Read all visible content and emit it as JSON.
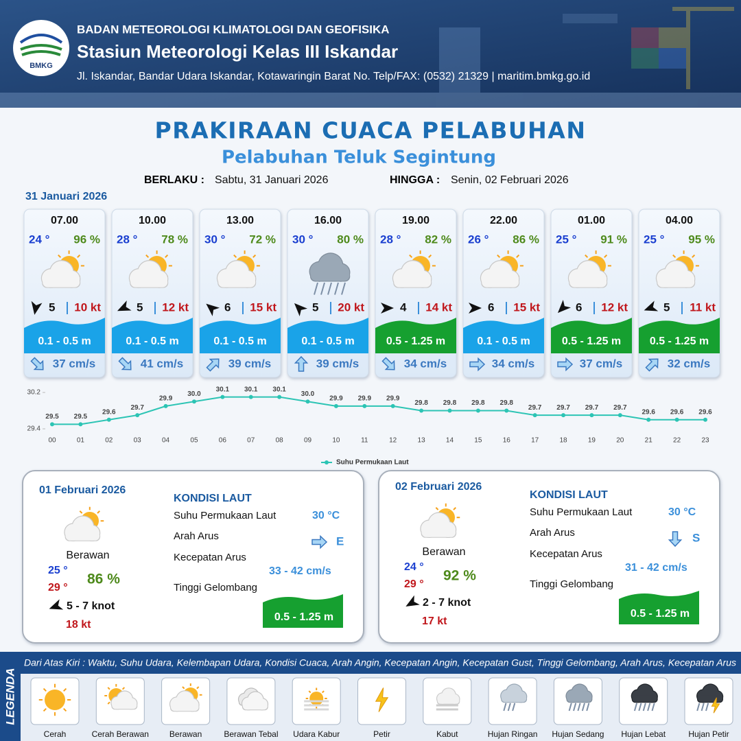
{
  "header": {
    "agency": "BADAN METEOROLOGI KLIMATOLOGI DAN GEOFISIKA",
    "station": "Stasiun Meteorologi Kelas III Iskandar",
    "address": "Jl. Iskandar, Bandar Udara Iskandar, Kotawaringin Barat No. Telp/FAX: (0532) 21329 | maritim.bmkg.go.id",
    "logo_text": "BMKG"
  },
  "title": "PRAKIRAAN CUACA PELABUHAN",
  "subtitle": "Pelabuhan Teluk Segintung",
  "validity": {
    "from_label": "BERLAKU :",
    "from": "Sabtu, 31 Januari 2026",
    "to_label": "HINGGA :",
    "to": "Senin, 02 Februari 2026"
  },
  "day1": {
    "date": "31 Januari 2026",
    "forecasts": [
      {
        "time": "07.00",
        "temp": "24 °",
        "humidity": "96 %",
        "wind": "5",
        "gust": "10 kt",
        "wave": "0.1 - 0.5 m",
        "wave_color": "#1aa3e8",
        "current": "37 cm/s"
      },
      {
        "time": "10.00",
        "temp": "28 °",
        "humidity": "78 %",
        "wind": "5",
        "gust": "12 kt",
        "wave": "0.1 - 0.5 m",
        "wave_color": "#1aa3e8",
        "current": "41 cm/s"
      },
      {
        "time": "13.00",
        "temp": "30 °",
        "humidity": "72 %",
        "wind": "6",
        "gust": "15 kt",
        "wave": "0.1 - 0.5 m",
        "wave_color": "#1aa3e8",
        "current": "39 cm/s"
      },
      {
        "time": "16.00",
        "temp": "30 °",
        "humidity": "80 %",
        "wind": "5",
        "gust": "20 kt",
        "wave": "0.1 - 0.5 m",
        "wave_color": "#1aa3e8",
        "current": "39 cm/s"
      },
      {
        "time": "19.00",
        "temp": "28 °",
        "humidity": "82 %",
        "wind": "4",
        "gust": "14 kt",
        "wave": "0.5 - 1.25 m",
        "wave_color": "#16a030",
        "current": "34 cm/s"
      },
      {
        "time": "22.00",
        "temp": "26 °",
        "humidity": "86 %",
        "wind": "6",
        "gust": "15 kt",
        "wave": "0.1 - 0.5 m",
        "wave_color": "#1aa3e8",
        "current": "34 cm/s"
      },
      {
        "time": "01.00",
        "temp": "25 °",
        "humidity": "91 %",
        "wind": "6",
        "gust": "12 kt",
        "wave": "0.5 - 1.25 m",
        "wave_color": "#16a030",
        "current": "37 cm/s"
      },
      {
        "time": "04.00",
        "temp": "25 °",
        "humidity": "95 %",
        "wind": "5",
        "gust": "11 kt",
        "wave": "0.5 - 1.25 m",
        "wave_color": "#16a030",
        "current": "32 cm/s"
      }
    ]
  },
  "chart_data": {
    "type": "line",
    "categories": [
      "00",
      "01",
      "02",
      "03",
      "04",
      "05",
      "06",
      "07",
      "08",
      "09",
      "10",
      "11",
      "12",
      "13",
      "14",
      "15",
      "16",
      "17",
      "18",
      "19",
      "20",
      "21",
      "22",
      "23"
    ],
    "series": [
      {
        "name": "Suhu Permukaan Laut",
        "color": "#2cc4b4",
        "values": [
          29.5,
          29.5,
          29.6,
          29.7,
          29.9,
          30.0,
          30.1,
          30.1,
          30.1,
          30.0,
          29.9,
          29.9,
          29.9,
          29.8,
          29.8,
          29.8,
          29.8,
          29.7,
          29.7,
          29.7,
          29.7,
          29.6,
          29.6,
          29.6
        ],
        "value_labels": [
          "29.5",
          "29.5",
          "29.6",
          "29.7",
          "29.9",
          "30.0",
          "30.1",
          "30.1",
          "30.1",
          "30.0",
          "29.9",
          "29.9",
          "29.9",
          "29.8",
          "29.8",
          "29.8",
          "29.8",
          "29.7",
          "29.7",
          "29.7",
          "29.7",
          "29.6",
          "29.6",
          "29.6"
        ]
      }
    ],
    "ylim": [
      29.4,
      30.2
    ],
    "yticks": [
      29.4,
      30.2
    ],
    "grid": false,
    "legend": "bottom"
  },
  "sea_labels": {
    "heading": "KONDISI LAUT",
    "sst": "Suhu Permukaan Laut",
    "direction": "Arah Arus",
    "speed": "Kecepatan Arus",
    "wave": "Tinggi Gelombang"
  },
  "daily": [
    {
      "date": "01 Februari 2026",
      "condition": "Berawan",
      "temp_min": "25 °",
      "temp_max": "29 °",
      "humidity": "86 %",
      "wind": "5 - 7 knot",
      "gust": "18 kt",
      "sst": "30 °C",
      "direction": "E",
      "speed": "33 - 42 cm/s",
      "wave": "0.5 - 1.25 m",
      "wave_color": "#16a030"
    },
    {
      "date": "02 Februari 2026",
      "condition": "Berawan",
      "temp_min": "24 °",
      "temp_max": "29 °",
      "humidity": "92 %",
      "wind": "2 - 7 knot",
      "gust": "17 kt",
      "sst": "30 °C",
      "direction": "S",
      "speed": "31 - 42 cm/s",
      "wave": "0.5 - 1.25 m",
      "wave_color": "#16a030"
    }
  ],
  "legend": {
    "title": "LEGENDA",
    "description": "Dari Atas Kiri : Waktu, Suhu Udara, Kelembapan Udara, Kondisi Cuaca, Arah Angin, Kecepatan Angin, Kecepatan Gust, Tinggi Gelombang, Arah Arus, Kecepatan Arus",
    "items": [
      "Cerah",
      "Cerah Berawan",
      "Berawan",
      "Berawan Tebal",
      "Udara Kabur",
      "Petir",
      "Kabut",
      "Hujan Ringan",
      "Hujan Sedang",
      "Hujan Lebat",
      "Hujan Petir"
    ]
  }
}
